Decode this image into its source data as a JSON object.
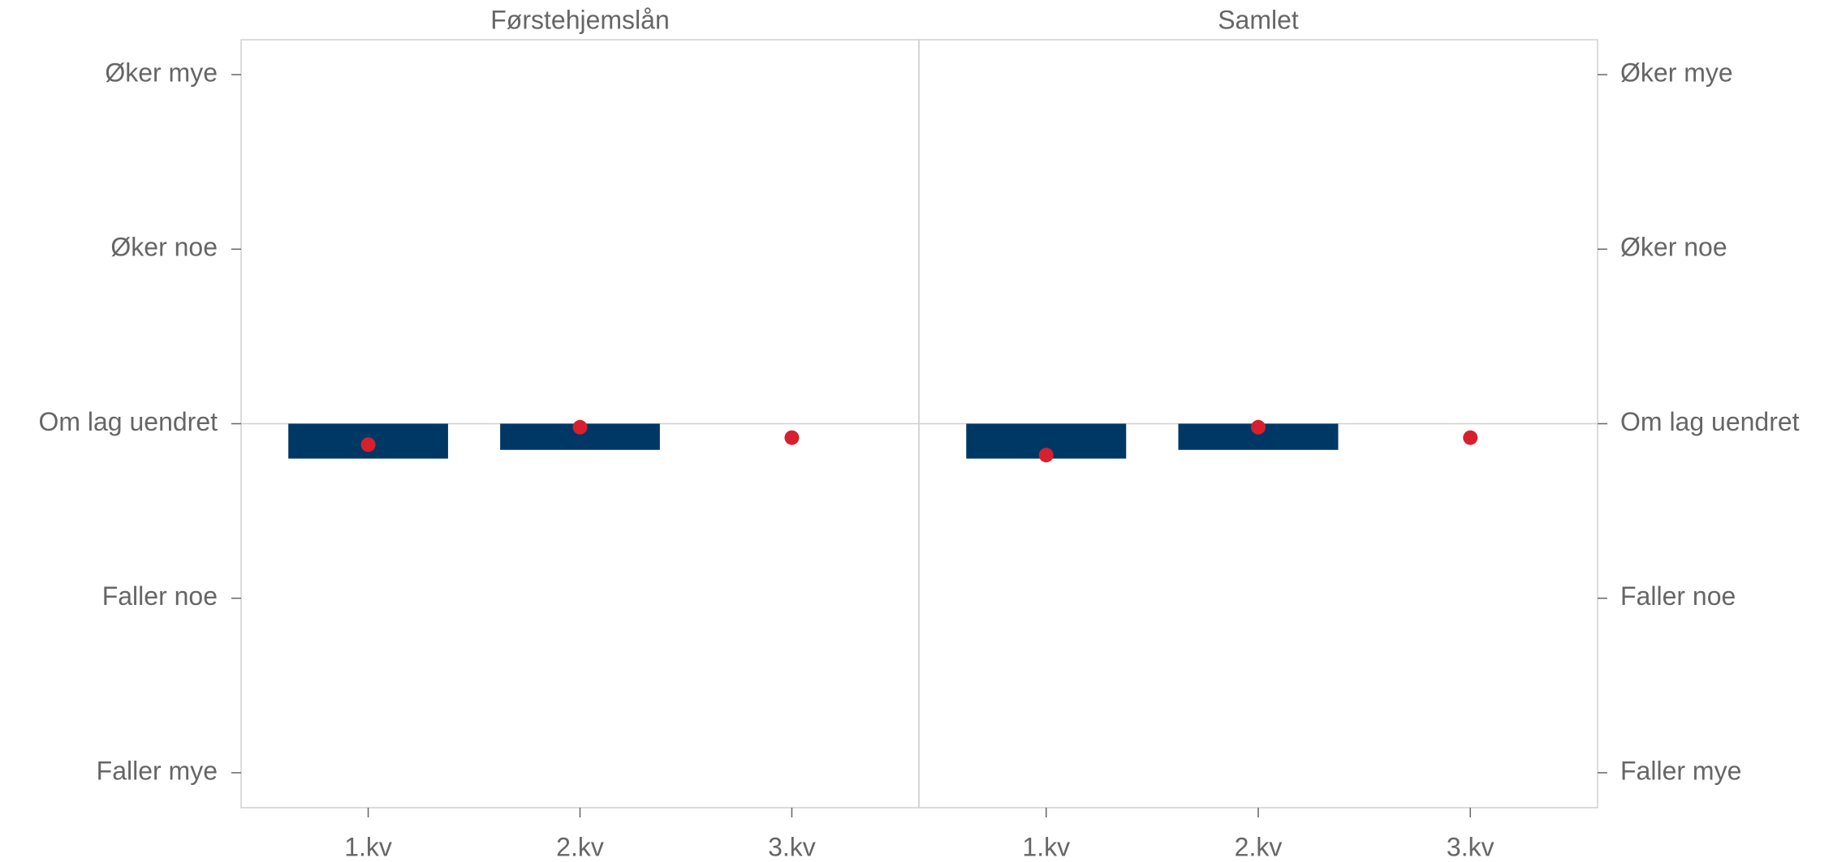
{
  "chart_data": [
    {
      "type": "bar",
      "title": "Førstehjemslån",
      "categories": [
        "1.kv",
        "2.kv",
        "3.kv"
      ],
      "series": [
        {
          "type": "bar",
          "color": "#003865",
          "values": [
            -0.2,
            -0.15,
            null
          ]
        },
        {
          "type": "scatter",
          "color": "#d7202e",
          "values": [
            -0.12,
            -0.02,
            -0.08
          ]
        }
      ],
      "ylim": [
        -2.2,
        2.2
      ],
      "yticks": [
        {
          "value": 2,
          "label": "Øker mye"
        },
        {
          "value": 1,
          "label": "Øker noe"
        },
        {
          "value": 0,
          "label": "Om lag uendret"
        },
        {
          "value": -1,
          "label": "Faller noe"
        },
        {
          "value": -2,
          "label": "Faller mye"
        }
      ]
    },
    {
      "type": "bar",
      "title": "Samlet",
      "categories": [
        "1.kv",
        "2.kv",
        "3.kv"
      ],
      "series": [
        {
          "type": "bar",
          "color": "#003865",
          "values": [
            -0.2,
            -0.15,
            null
          ]
        },
        {
          "type": "scatter",
          "color": "#d7202e",
          "values": [
            -0.18,
            -0.02,
            -0.08
          ]
        }
      ],
      "ylim": [
        -2.2,
        2.2
      ],
      "yticks": [
        {
          "value": 2,
          "label": "Øker mye"
        },
        {
          "value": 1,
          "label": "Øker noe"
        },
        {
          "value": 0,
          "label": "Om lag uendret"
        },
        {
          "value": -1,
          "label": "Faller noe"
        },
        {
          "value": -2,
          "label": "Faller mye"
        }
      ]
    }
  ]
}
